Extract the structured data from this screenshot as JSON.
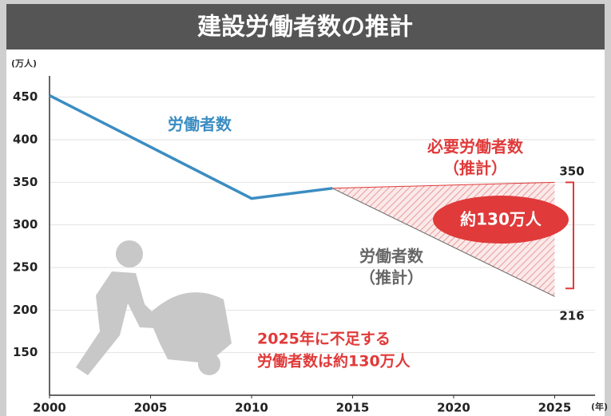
{
  "chart_data": {
    "type": "line",
    "title": "建設労働者数の推計",
    "y_unit": "(万人)",
    "x_unit": "(年)",
    "xlim": [
      2000,
      2027
    ],
    "xticks": [
      2000,
      2005,
      2010,
      2015,
      2020,
      2025
    ],
    "ylim": [
      100,
      475
    ],
    "yticks": [
      150,
      200,
      250,
      300,
      350,
      400,
      450
    ],
    "grid": true,
    "series": [
      {
        "name": [
          "労働者数"
        ],
        "color": "#3b8dc2",
        "x": [
          2000,
          2010,
          2014
        ],
        "values": [
          452,
          331,
          343
        ]
      },
      {
        "name": [
          "必要労働者数",
          "（推計）"
        ],
        "color": "#e03a3a",
        "x": [
          2014,
          2025
        ],
        "values": [
          343,
          350
        ]
      },
      {
        "name": [
          "労働者数",
          "（推計）"
        ],
        "color": "#666666",
        "x": [
          2014,
          2025
        ],
        "values": [
          343,
          216
        ]
      }
    ],
    "annotations": {
      "gap": "約130万人",
      "note": [
        "2025年に不足する",
        "労働者数は約130万人"
      ]
    }
  }
}
